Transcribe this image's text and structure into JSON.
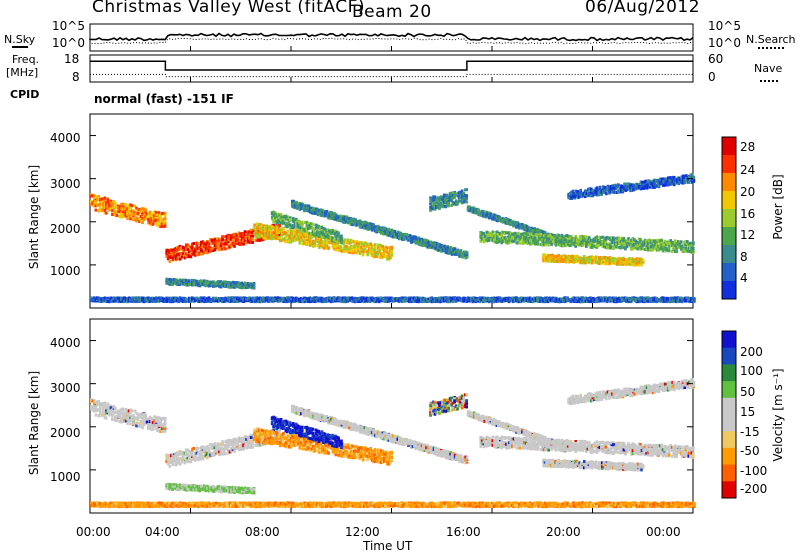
{
  "header": {
    "title": "Christmas Valley West (fitACF)",
    "beam": "Beam 20",
    "date": "06/Aug/2012"
  },
  "labels": {
    "nsky": "N.Sky",
    "nsearch": "N.Search",
    "freq": "Freq.",
    "freq_unit": "[MHz]",
    "nave": "Nave",
    "cpid": "CPID",
    "cpid_value": "normal (fast) -151 IF",
    "xlabel": "Time UT"
  },
  "colors": {
    "power_scale": [
      "#1030e0",
      "#2060c8",
      "#3a8c8c",
      "#4ca64c",
      "#9acc30",
      "#f0c800",
      "#ff8a00",
      "#ff3000",
      "#e00000"
    ],
    "velocity_scale": [
      "#e00000",
      "#ff6000",
      "#ff9a00",
      "#f0c860",
      "#c8c8c8",
      "#c8c8c8",
      "#60c040",
      "#2a8a3a",
      "#1848c0",
      "#1010d0"
    ]
  },
  "chart_data": [
    {
      "type": "line",
      "name": "noise",
      "left_ticks": [
        "10^5",
        "10^0"
      ],
      "right_ticks": [
        "10^5",
        "10^0"
      ]
    },
    {
      "type": "line",
      "name": "frequency-nave",
      "left_ticks": [
        "18",
        "8"
      ],
      "right_ticks": [
        "60",
        "0"
      ],
      "freq_steps": [
        [
          0,
          17
        ],
        [
          3,
          13
        ],
        [
          15,
          17
        ],
        [
          24,
          17
        ]
      ],
      "nave_steps": [
        [
          0,
          18
        ],
        [
          3,
          12
        ],
        [
          15,
          18
        ],
        [
          24,
          18
        ]
      ]
    },
    {
      "type": "heatmap",
      "name": "power",
      "ylabel": "Slant Range [km]",
      "ylim": [
        0,
        4500
      ],
      "yticks": [
        "1000",
        "2000",
        "3000",
        "4000"
      ],
      "xlim": [
        0,
        24
      ],
      "colorbar_label": "Power [dB]",
      "colorbar_ticks": [
        "4",
        "8",
        "12",
        "16",
        "20",
        "24",
        "28"
      ]
    },
    {
      "type": "heatmap",
      "name": "velocity",
      "ylabel": "Slant Range [km]",
      "ylim": [
        0,
        4500
      ],
      "yticks": [
        "1000",
        "2000",
        "3000",
        "4000"
      ],
      "xlim": [
        0,
        24
      ],
      "xticks": [
        "00:00",
        "04:00",
        "08:00",
        "12:00",
        "16:00",
        "20:00",
        "00:00"
      ],
      "colorbar_label": "Velocity [m s⁻¹]",
      "colorbar_ticks": [
        "200",
        "100",
        "50",
        "15",
        "-15",
        "-50",
        "-100",
        "-200"
      ]
    }
  ]
}
